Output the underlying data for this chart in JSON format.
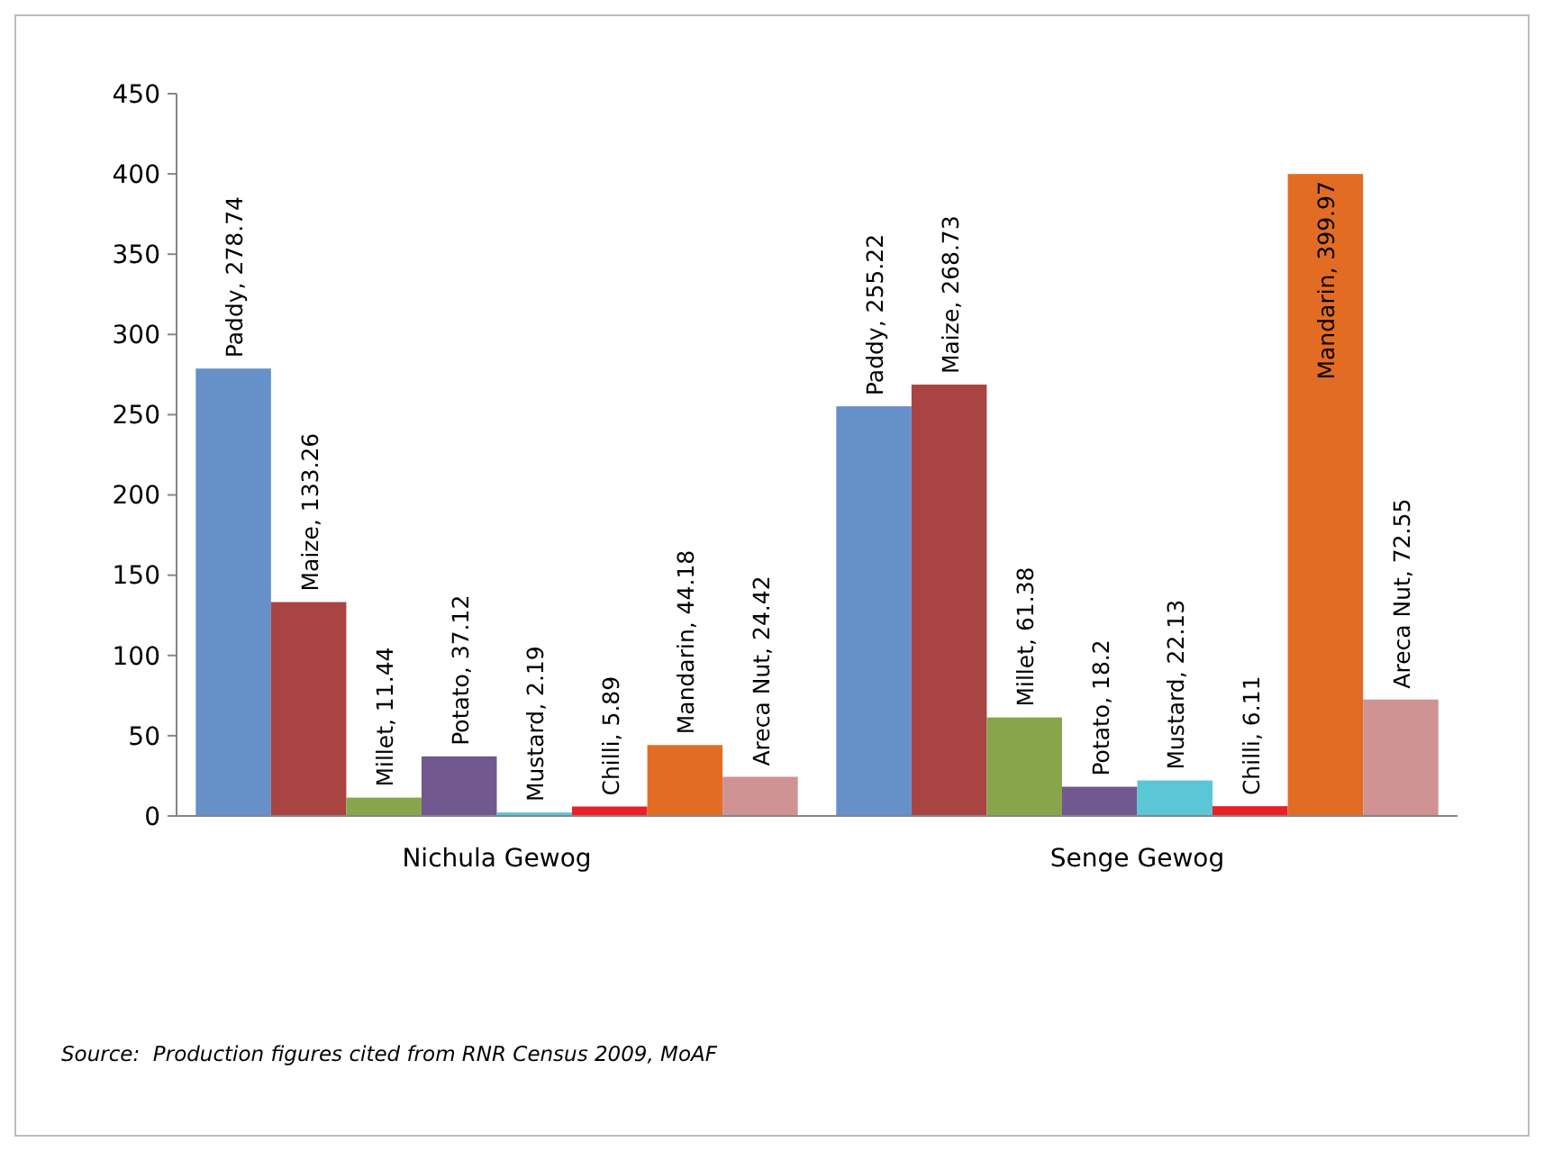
{
  "chart_data": {
    "type": "bar",
    "categories": [
      "Nichula Gewog",
      "Senge Gewog"
    ],
    "series": [
      {
        "name": "Paddy",
        "color": "#6590c8",
        "values": [
          278.74,
          255.22
        ],
        "value_labels": [
          ", 278.74",
          ", 255.22"
        ]
      },
      {
        "name": "Maize",
        "color": "#a84441",
        "values": [
          133.26,
          268.73
        ],
        "value_labels": [
          ", 133.26",
          ", 268.73"
        ]
      },
      {
        "name": "Millet",
        "color": "#89a54c",
        "values": [
          11.44,
          61.38
        ],
        "value_labels": [
          ", 11.44",
          ", 61.38"
        ]
      },
      {
        "name": "Potato",
        "color": "#71588f",
        "values": [
          37.12,
          18.2
        ],
        "value_labels": [
          ", 37.12",
          ", 18.2"
        ]
      },
      {
        "name": "Mustard",
        "color": "#5bc6d6",
        "values": [
          2.19,
          22.13
        ],
        "value_labels": [
          ", 2.19",
          ", 22.13"
        ]
      },
      {
        "name": "Chilli",
        "color": "#ea2026",
        "values": [
          5.89,
          6.11
        ],
        "value_labels": [
          ", 5.89",
          ", 6.11"
        ]
      },
      {
        "name": "Mandarin",
        "color": "#e36c24",
        "values": [
          44.18,
          399.97
        ],
        "value_labels": [
          ", 44.18",
          ", 399.97"
        ]
      },
      {
        "name": "Areca Nut",
        "color": "#d09393",
        "values": [
          24.42,
          72.55
        ],
        "value_labels": [
          ", 24.42",
          ", 72.55"
        ]
      }
    ],
    "ylim": [
      0,
      450
    ],
    "yticks": [
      0,
      50,
      100,
      150,
      200,
      250,
      300,
      350,
      400,
      450
    ],
    "grid": false,
    "legend": false,
    "annotations": [
      "Source:  Production figures cited from RNR Census 2009, MoAF"
    ]
  }
}
